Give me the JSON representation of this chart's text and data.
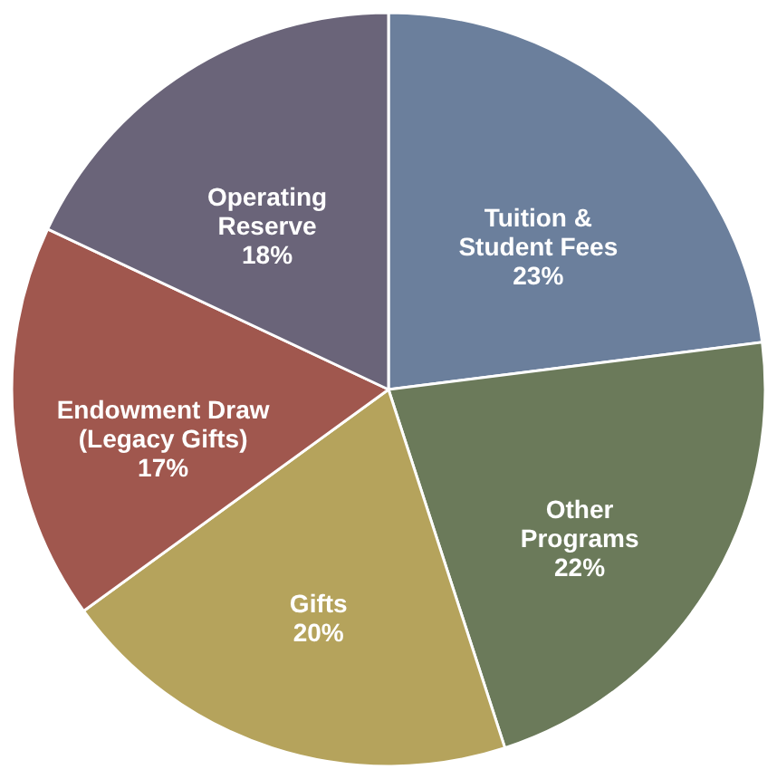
{
  "chart_data": {
    "type": "pie",
    "categories": [
      "Tuition &\nStudent Fees",
      "Other\nPrograms",
      "Gifts",
      "Endowment Draw\n(Legacy Gifts)",
      "Operating\nReserve"
    ],
    "values": [
      23,
      22,
      20,
      17,
      18
    ],
    "colors": [
      "#6b7f9c",
      "#6b7a5a",
      "#b5a35c",
      "#a0574e",
      "#6a6479"
    ],
    "value_labels": [
      "23%",
      "22%",
      "20%",
      "17%",
      "18%"
    ]
  }
}
